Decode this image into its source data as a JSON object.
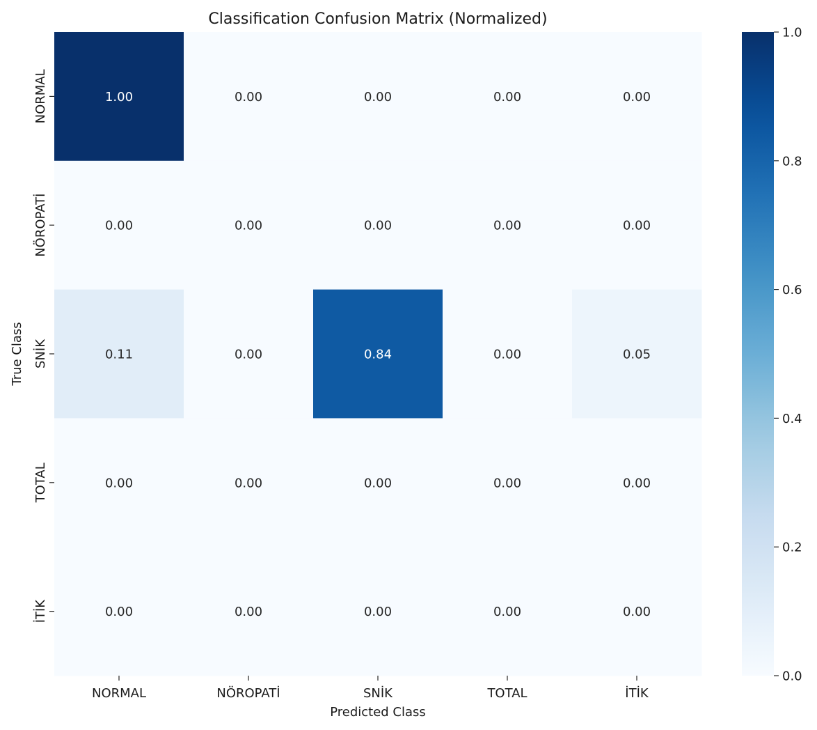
{
  "chart_data": {
    "type": "heatmap",
    "title": "Classification Confusion Matrix (Normalized)",
    "xlabel": "Predicted Class",
    "ylabel": "True Class",
    "x_categories": [
      "NORMAL",
      "NÖROPATİ",
      "SNİK",
      "TOTAL",
      "İTİK"
    ],
    "y_categories": [
      "NORMAL",
      "NÖROPATİ",
      "SNİK",
      "TOTAL",
      "İTİK"
    ],
    "values": [
      [
        1.0,
        0.0,
        0.0,
        0.0,
        0.0
      ],
      [
        0.0,
        0.0,
        0.0,
        0.0,
        0.0
      ],
      [
        0.11,
        0.0,
        0.84,
        0.0,
        0.05
      ],
      [
        0.0,
        0.0,
        0.0,
        0.0,
        0.0
      ],
      [
        0.0,
        0.0,
        0.0,
        0.0,
        0.0
      ]
    ],
    "value_format": "0.00",
    "colormap": "Blues",
    "vmin": 0.0,
    "vmax": 1.0,
    "colorbar": {
      "ticks": [
        0.0,
        0.2,
        0.4,
        0.6,
        0.8,
        1.0
      ],
      "tick_labels": [
        "0.0",
        "0.2",
        "0.4",
        "0.6",
        "0.8",
        "1.0"
      ],
      "position": "right"
    },
    "annotation_colors": {
      "light": "#ffffff",
      "dark": "#262626"
    }
  }
}
